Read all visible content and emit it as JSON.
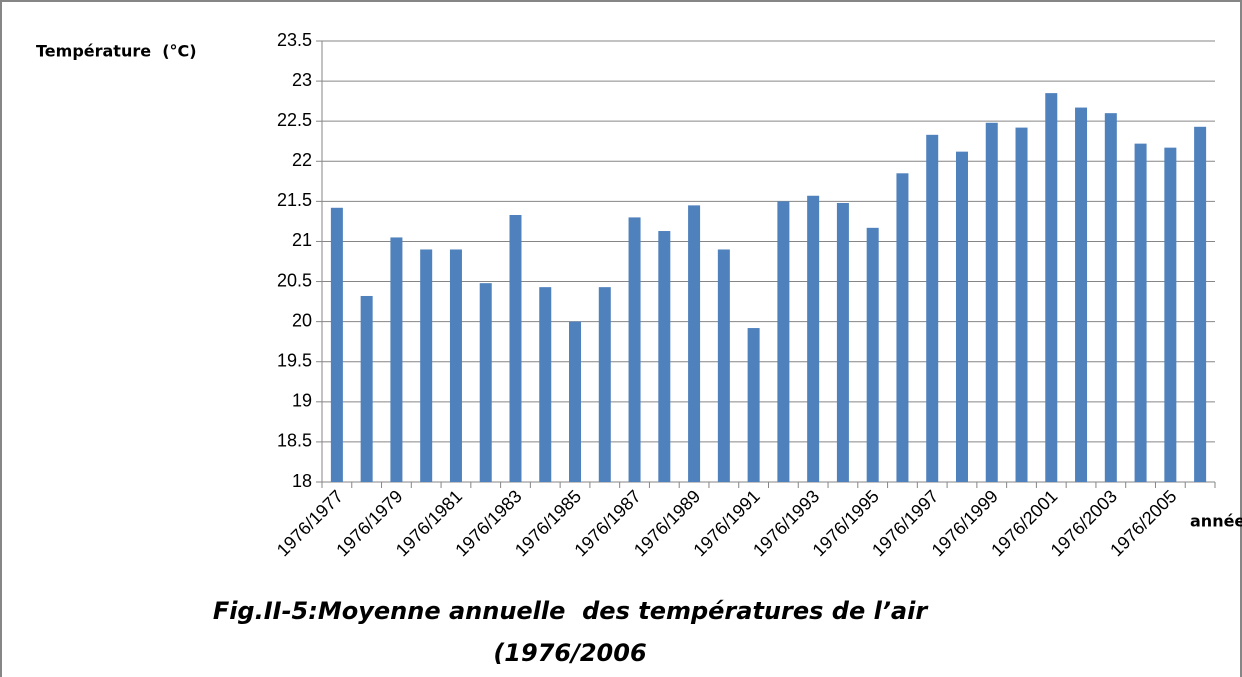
{
  "chart_data": {
    "type": "bar",
    "title": [
      "Fig.II-5:Moyenne annuelle  des températures de l’air",
      "(1976/2006"
    ],
    "ylabel": "Température  (°C)",
    "xlabel": "année",
    "categories": [
      "1976/1977",
      null,
      "1976/1979",
      null,
      "1976/1981",
      null,
      "1976/1983",
      null,
      "1976/1985",
      null,
      "1976/1987",
      null,
      "1976/1989",
      null,
      "1976/1991",
      null,
      "1976/1993",
      null,
      "1976/1995",
      null,
      "1976/1997",
      null,
      "1976/1999",
      null,
      "1976/2001",
      null,
      "1976/2003",
      null,
      "1976/2005",
      null
    ],
    "values": [
      21.42,
      20.32,
      21.05,
      20.9,
      20.9,
      20.48,
      21.33,
      20.43,
      20.0,
      20.43,
      21.3,
      21.13,
      21.45,
      20.9,
      19.92,
      21.5,
      21.57,
      21.48,
      21.17,
      21.85,
      22.33,
      22.12,
      22.48,
      22.42,
      22.85,
      22.67,
      22.6,
      22.22,
      22.17,
      22.43
    ],
    "color": "#4f81bd",
    "ylim": [
      18,
      23.5
    ],
    "yticks": [
      18,
      18.5,
      19,
      19.5,
      20,
      20.5,
      21,
      21.5,
      22,
      22.5,
      23,
      23.5
    ],
    "grid": true
  }
}
